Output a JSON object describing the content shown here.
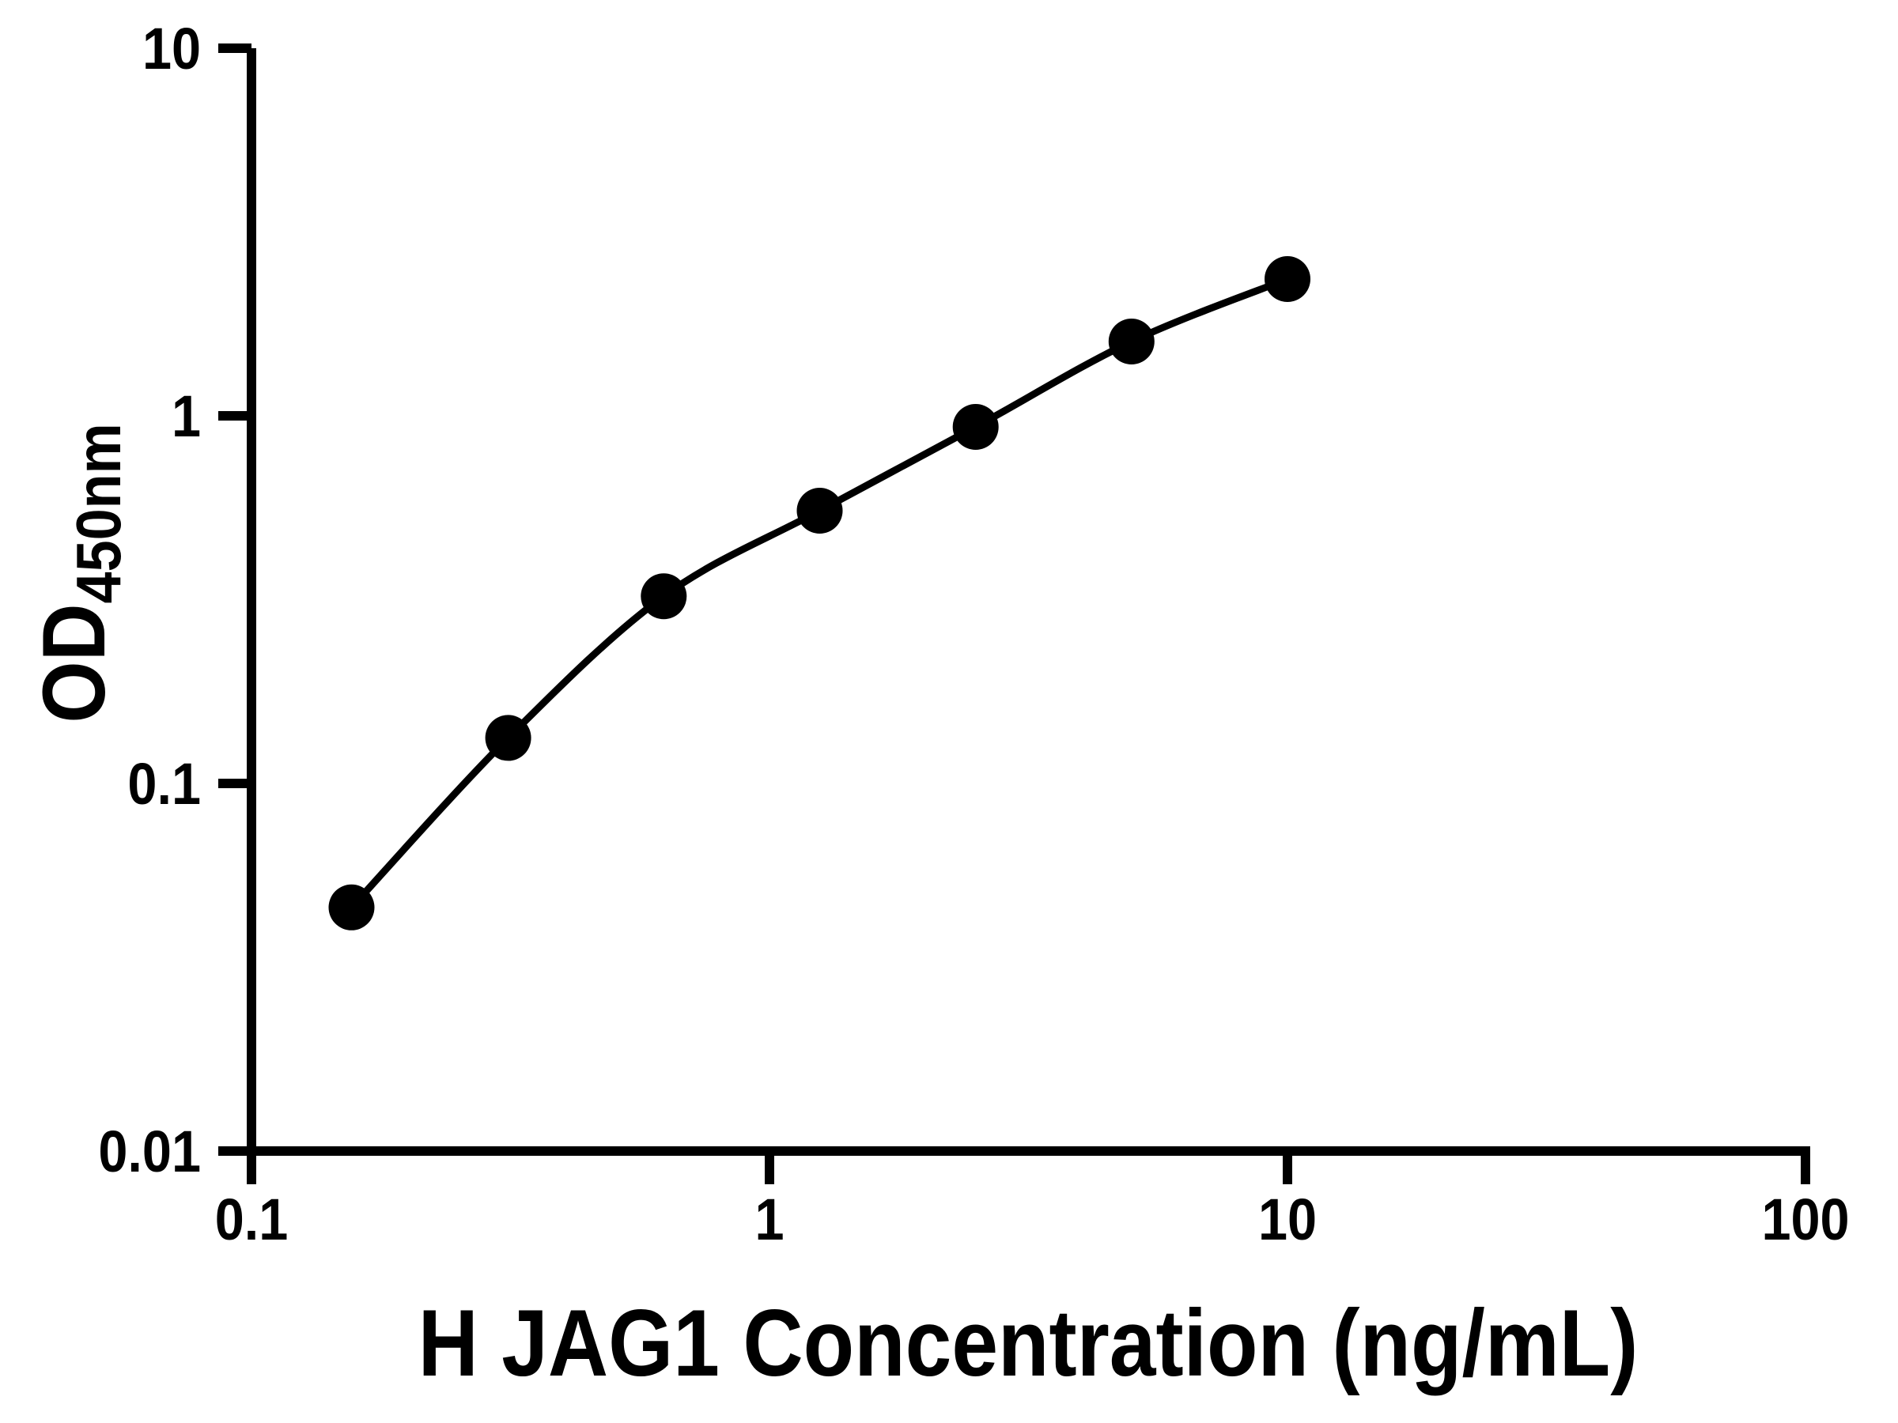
{
  "figure": {
    "background": "#ffffff",
    "foreground": "#000000"
  },
  "chart_data": {
    "type": "scatter",
    "title": "",
    "xlabel": "H JAG1 Concentration (ng/mL)",
    "ylabel": "OD450nm",
    "ylabel_main": "OD",
    "ylabel_sub": "450nm",
    "x_scale": "log",
    "y_scale": "log",
    "grid": false,
    "legend_position": "none",
    "x_axis": {
      "min": 0.1,
      "max": 100,
      "ticks": [
        {
          "value": 0.1,
          "label": "0.1"
        },
        {
          "value": 1,
          "label": "1"
        },
        {
          "value": 10,
          "label": "10"
        },
        {
          "value": 100,
          "label": "100"
        }
      ]
    },
    "y_axis": {
      "min": 0.01,
      "max": 10,
      "ticks": [
        {
          "value": 10,
          "label": "10"
        },
        {
          "value": 1,
          "label": "1"
        },
        {
          "value": 0.1,
          "label": "0.1"
        },
        {
          "value": 0.01,
          "label": "0.01"
        }
      ]
    },
    "x": [
      0.156,
      0.313,
      0.625,
      1.25,
      2.5,
      5,
      10
    ],
    "y": [
      0.046,
      0.133,
      0.323,
      0.552,
      0.933,
      1.593,
      2.355
    ],
    "marker": "filled-circle",
    "line": "smooth",
    "point_color": "#000000",
    "line_color": "#000000"
  }
}
